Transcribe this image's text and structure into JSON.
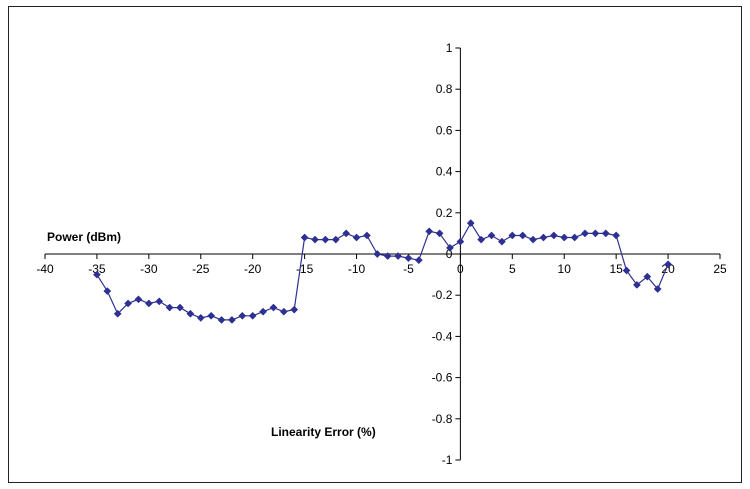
{
  "chart_data": {
    "type": "line",
    "title": "",
    "xlabel": "Power (dBm)",
    "ylabel": "Linearity Error (%)",
    "xlim": [
      -40,
      25
    ],
    "ylim": [
      -1,
      1
    ],
    "x_ticks": [
      -40,
      -35,
      -30,
      -25,
      -20,
      -15,
      -10,
      -5,
      0,
      5,
      10,
      15,
      20,
      25
    ],
    "y_ticks": [
      1,
      0.8,
      0.6,
      0.4,
      0.2,
      0,
      -0.2,
      -0.4,
      -0.6,
      -0.8,
      -1
    ],
    "x_tick_labels": [
      "-40",
      "-35",
      "-30",
      "-25",
      "-20",
      "-15",
      "-10",
      "-5",
      "0",
      "5",
      "10",
      "15",
      "20",
      "25"
    ],
    "y_tick_labels": [
      "1",
      "0.8",
      "0.6",
      "0.4",
      "0.2",
      "0",
      "-0.2",
      "-0.4",
      "-0.6",
      "-0.8",
      "-1"
    ],
    "grid": false,
    "legend": "none",
    "series": [
      {
        "color": "#2e3192",
        "x": [
          -35,
          -34,
          -33,
          -32,
          -31,
          -30,
          -29,
          -28,
          -27,
          -26,
          -25,
          -24,
          -23,
          -22,
          -21,
          -20,
          -19,
          -18,
          -17,
          -16,
          -15,
          -14,
          -13,
          -12,
          -11,
          -10,
          -9,
          -8,
          -7,
          -6,
          -5,
          -4,
          -3,
          -2,
          -1,
          0,
          1,
          2,
          3,
          4,
          5,
          6,
          7,
          8,
          9,
          10,
          11,
          12,
          13,
          14,
          15,
          16,
          17,
          18,
          19,
          20
        ],
        "y": [
          -0.1,
          -0.18,
          -0.29,
          -0.24,
          -0.22,
          -0.24,
          -0.23,
          -0.26,
          -0.26,
          -0.29,
          -0.31,
          -0.3,
          -0.32,
          -0.32,
          -0.3,
          -0.3,
          -0.28,
          -0.26,
          -0.28,
          -0.27,
          0.08,
          0.07,
          0.07,
          0.07,
          0.1,
          0.08,
          0.09,
          0.0,
          -0.01,
          -0.01,
          -0.02,
          -0.03,
          0.11,
          0.1,
          0.03,
          0.06,
          0.15,
          0.07,
          0.09,
          0.06,
          0.09,
          0.09,
          0.07,
          0.08,
          0.09,
          0.08,
          0.08,
          0.1,
          0.1,
          0.1,
          0.09,
          -0.08,
          -0.15,
          -0.11,
          -0.17,
          -0.05
        ]
      }
    ]
  }
}
